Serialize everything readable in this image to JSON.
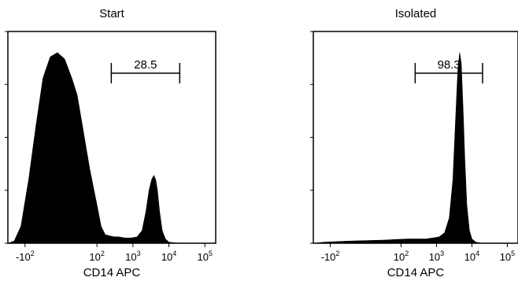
{
  "chart_data": [
    {
      "type": "area",
      "title": "Start",
      "xlabel": "CD14 APC",
      "ylabel": "",
      "xscale": "biexponential",
      "xlim": [
        -300,
        200000
      ],
      "x_ticks": [
        {
          "value": -100,
          "base": "-10",
          "exp": "2"
        },
        {
          "value": 100,
          "base": "10",
          "exp": "2"
        },
        {
          "value": 1000,
          "base": "10",
          "exp": "3"
        },
        {
          "value": 10000,
          "base": "10",
          "exp": "4"
        },
        {
          "value": 100000,
          "base": "10",
          "exp": "5"
        }
      ],
      "gate": {
        "label": "28.5",
        "x_range": [
          250,
          20000
        ]
      },
      "fill_color": "#000000",
      "series": [
        {
          "x": [
            -300,
            -200,
            -130,
            -90,
            -70,
            -50,
            -30,
            -10,
            10,
            30,
            45,
            60,
            80,
            100,
            130,
            170,
            220,
            300,
            400,
            600,
            900,
            1300,
            1800,
            2300,
            2800,
            3300,
            3800,
            4300,
            4800,
            5500,
            6500,
            8000,
            10000,
            15000,
            30000,
            200000
          ],
          "y": [
            0,
            0.01,
            0.08,
            0.3,
            0.55,
            0.78,
            0.88,
            0.9,
            0.87,
            0.78,
            0.7,
            0.55,
            0.35,
            0.18,
            0.08,
            0.04,
            0.035,
            0.03,
            0.03,
            0.025,
            0.025,
            0.03,
            0.06,
            0.15,
            0.25,
            0.3,
            0.32,
            0.3,
            0.25,
            0.15,
            0.06,
            0.02,
            0.005,
            0.002,
            0.0,
            0.0
          ]
        }
      ]
    },
    {
      "type": "area",
      "title": "Isolated",
      "xlabel": "CD14 APC",
      "ylabel": "",
      "xscale": "biexponential",
      "xlim": [
        -300,
        200000
      ],
      "x_ticks": [
        {
          "value": -100,
          "base": "-10",
          "exp": "2"
        },
        {
          "value": 100,
          "base": "10",
          "exp": "2"
        },
        {
          "value": 1000,
          "base": "10",
          "exp": "3"
        },
        {
          "value": 10000,
          "base": "10",
          "exp": "4"
        },
        {
          "value": 100000,
          "base": "10",
          "exp": "5"
        }
      ],
      "gate": {
        "label": "98.3",
        "x_range": [
          250,
          20000
        ]
      },
      "fill_color": "#000000",
      "series": [
        {
          "x": [
            -300,
            -150,
            -50,
            50,
            150,
            300,
            500,
            800,
            1200,
            1700,
            2300,
            2900,
            3500,
            4000,
            4500,
            5000,
            5600,
            6300,
            7200,
            8500,
            10000,
            13000,
            20000,
            200000
          ],
          "y": [
            0,
            0.005,
            0.01,
            0.015,
            0.02,
            0.02,
            0.02,
            0.025,
            0.03,
            0.05,
            0.12,
            0.3,
            0.6,
            0.82,
            0.9,
            0.85,
            0.65,
            0.4,
            0.18,
            0.06,
            0.02,
            0.005,
            0.0,
            0.0
          ]
        }
      ]
    }
  ]
}
